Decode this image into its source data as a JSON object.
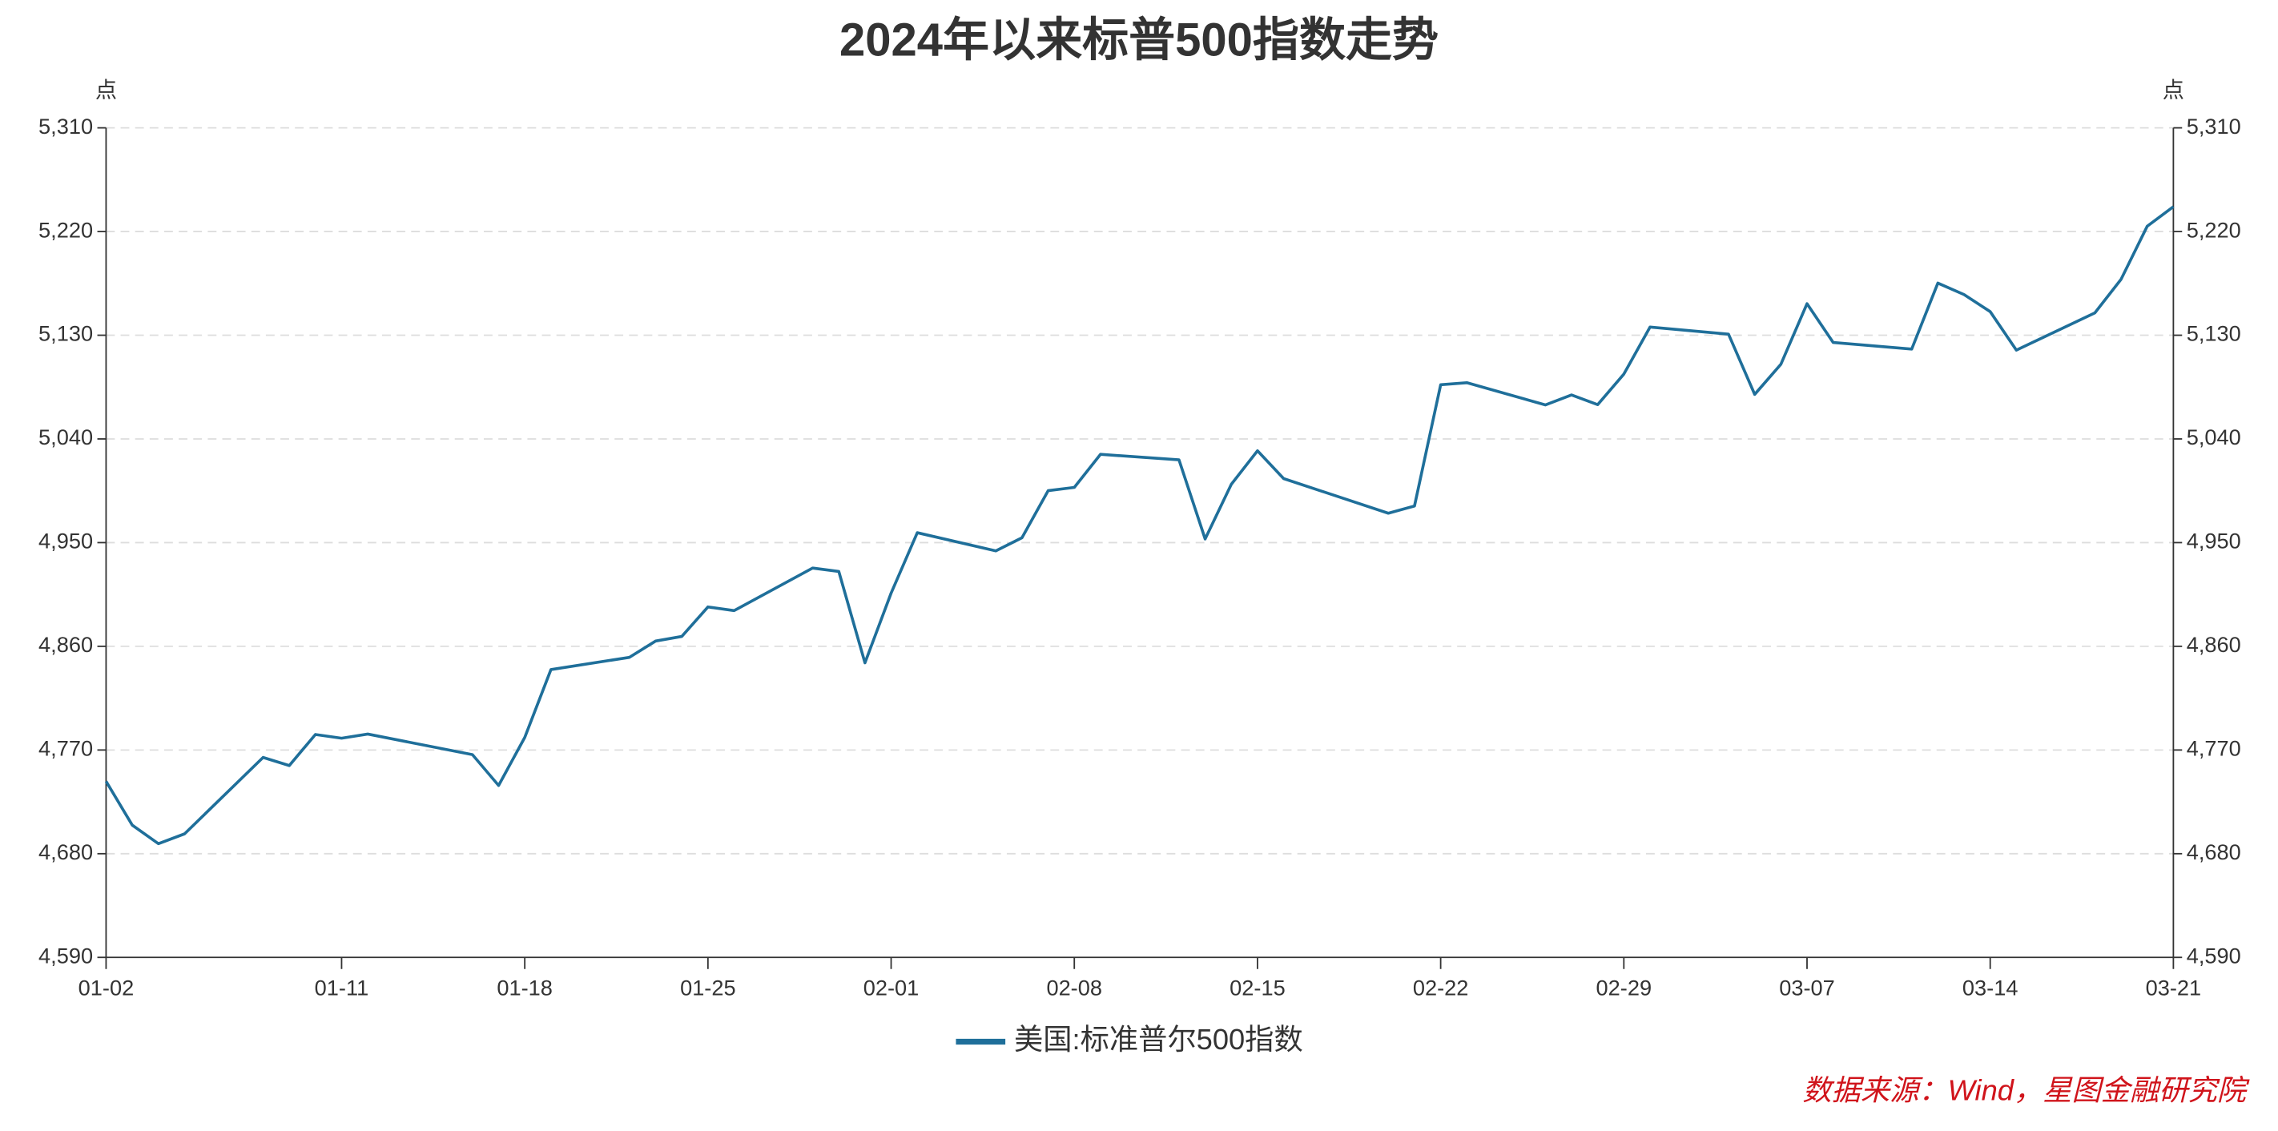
{
  "chart_data": {
    "type": "line",
    "title": "2024年以来标普500指数走势",
    "y_label": "点",
    "y2_label": "点",
    "source": "数据来源：Wind，星图金融研究院",
    "x": [
      "01-02",
      "01-03",
      "01-04",
      "01-05",
      "01-08",
      "01-09",
      "01-10",
      "01-11",
      "01-12",
      "01-16",
      "01-17",
      "01-18",
      "01-19",
      "01-22",
      "01-23",
      "01-24",
      "01-25",
      "01-26",
      "01-29",
      "01-30",
      "01-31",
      "02-01",
      "02-02",
      "02-05",
      "02-06",
      "02-07",
      "02-08",
      "02-09",
      "02-12",
      "02-13",
      "02-14",
      "02-15",
      "02-16",
      "02-20",
      "02-21",
      "02-22",
      "02-23",
      "02-26",
      "02-27",
      "02-28",
      "02-29",
      "03-01",
      "03-04",
      "03-05",
      "03-06",
      "03-07",
      "03-08",
      "03-11",
      "03-12",
      "03-13",
      "03-14",
      "03-15",
      "03-18",
      "03-19",
      "03-20",
      "03-21"
    ],
    "series": [
      {
        "name": "美国:标准普尔500指数",
        "color": "#1f6f9a",
        "values": [
          4742.83,
          4704.81,
          4688.68,
          4697.24,
          4763.54,
          4756.5,
          4783.45,
          4780.24,
          4783.83,
          4765.98,
          4739.21,
          4780.94,
          4839.81,
          4850.43,
          4864.6,
          4868.55,
          4894.16,
          4890.97,
          4927.93,
          4924.97,
          4845.65,
          4906.19,
          4958.61,
          4942.81,
          4954.23,
          4995.06,
          4997.91,
          5026.61,
          5021.84,
          4953.17,
          5000.62,
          5029.73,
          5005.57,
          4975.51,
          4981.8,
          5087.03,
          5088.8,
          5069.53,
          5078.18,
          5069.76,
          5096.27,
          5137.08,
          5130.95,
          5078.65,
          5104.76,
          5157.36,
          5123.69,
          5117.94,
          5175.27,
          5165.31,
          5150.48,
          5117.09,
          5149.42,
          5178.51,
          5224.62,
          5241.53
        ]
      }
    ],
    "xlim": [
      "01-02",
      "03-21"
    ],
    "xticks": [
      "01-02",
      "01-11",
      "01-18",
      "01-25",
      "02-01",
      "02-08",
      "02-15",
      "02-22",
      "02-29",
      "03-07",
      "03-14",
      "03-21"
    ],
    "ylim": [
      4590,
      5310
    ],
    "yticks": [
      {
        "value": 4590,
        "label": "4,590"
      },
      {
        "value": 4680,
        "label": "4,680"
      },
      {
        "value": 4770,
        "label": "4,770"
      },
      {
        "value": 4860,
        "label": "4,860"
      },
      {
        "value": 4950,
        "label": "4,950"
      },
      {
        "value": 5040,
        "label": "5,040"
      },
      {
        "value": 5130,
        "label": "5,130"
      },
      {
        "value": 5220,
        "label": "5,220"
      },
      {
        "value": 5310,
        "label": "5,310"
      }
    ],
    "y2lim": [
      4590,
      5310
    ],
    "y2ticks": [
      {
        "value": 4590,
        "label": "4,590"
      },
      {
        "value": 4680,
        "label": "4,680"
      },
      {
        "value": 4770,
        "label": "4,770"
      },
      {
        "value": 4860,
        "label": "4,860"
      },
      {
        "value": 4950,
        "label": "4,950"
      },
      {
        "value": 5040,
        "label": "5,040"
      },
      {
        "value": 5130,
        "label": "5,130"
      },
      {
        "value": 5220,
        "label": "5,220"
      },
      {
        "value": 5310,
        "label": "5,310"
      }
    ],
    "grid": true,
    "legend": "bottom"
  }
}
